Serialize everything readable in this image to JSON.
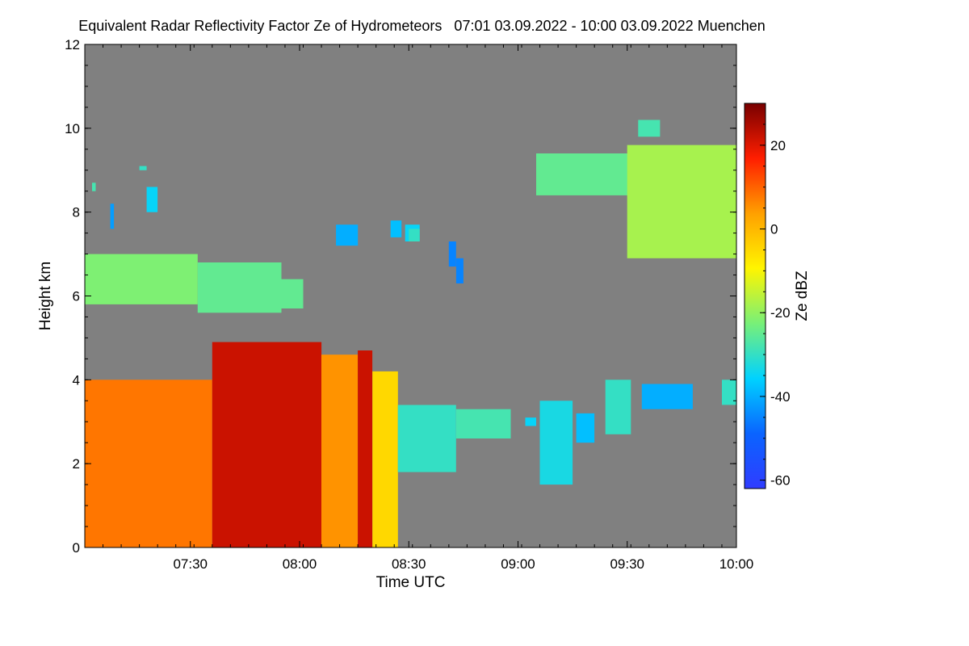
{
  "chart_data": {
    "type": "heatmap",
    "title": "Equivalent Radar Reflectivity Factor Ze of Hydrometeors   07:01 03.09.2022 - 10:00 03.09.2022 Muenchen",
    "xlabel": "Time UTC",
    "ylabel": "Height km",
    "colorbar_label": "Ze dBZ",
    "xlim": [
      "07:01",
      "10:00"
    ],
    "ylim": [
      0,
      12
    ],
    "x_ticks": [
      "07:30",
      "08:00",
      "08:30",
      "09:00",
      "09:30",
      "10:00"
    ],
    "y_ticks": [
      "0",
      "2",
      "4",
      "6",
      "8",
      "10",
      "12"
    ],
    "colorbar_range": [
      -62,
      30
    ],
    "colorbar_ticks": [
      "20",
      "0",
      "-20",
      "-40",
      "-60"
    ],
    "background_color": "#808080",
    "colormap": [
      "#303cff",
      "#0a64ff",
      "#00d2ff",
      "#78f078",
      "#fff500",
      "#ffa000",
      "#ff1e00",
      "#780000"
    ],
    "series": [
      {
        "kind": "cloud layer",
        "time_start": "07:01",
        "time_end": "07:32",
        "height_bottom": 5.8,
        "height_top": 7.0,
        "ze_dbz": -22
      },
      {
        "kind": "cloud layer",
        "time_start": "07:32",
        "time_end": "07:55",
        "height_bottom": 5.6,
        "height_top": 6.8,
        "ze_dbz": -25
      },
      {
        "kind": "cloud layer",
        "time_start": "07:51",
        "time_end": "08:01",
        "height_bottom": 5.7,
        "height_top": 6.4,
        "ze_dbz": -25
      },
      {
        "kind": "precipitation",
        "time_start": "07:01",
        "time_end": "07:36",
        "height_bottom": 0,
        "height_top": 4.0,
        "ze_dbz": 8
      },
      {
        "kind": "precipitation",
        "time_start": "07:36",
        "time_end": "08:06",
        "height_bottom": 0,
        "height_top": 4.9,
        "ze_dbz": 22
      },
      {
        "kind": "precipitation",
        "time_start": "08:06",
        "time_end": "08:16",
        "height_bottom": 0,
        "height_top": 4.6,
        "ze_dbz": 5
      },
      {
        "kind": "precipitation",
        "time_start": "08:16",
        "time_end": "08:20",
        "height_bottom": 0,
        "height_top": 4.7,
        "ze_dbz": 22
      },
      {
        "kind": "precipitation",
        "time_start": "08:20",
        "time_end": "08:27",
        "height_bottom": 0,
        "height_top": 4.2,
        "ze_dbz": -5
      },
      {
        "kind": "cloud layer",
        "time_start": "08:27",
        "time_end": "08:43",
        "height_bottom": 1.8,
        "height_top": 3.4,
        "ze_dbz": -30
      },
      {
        "kind": "cloud layer",
        "time_start": "08:43",
        "time_end": "08:58",
        "height_bottom": 2.6,
        "height_top": 3.3,
        "ze_dbz": -28
      },
      {
        "kind": "cloud layer",
        "time_start": "09:02",
        "time_end": "09:05",
        "height_bottom": 2.9,
        "height_top": 3.1,
        "ze_dbz": -35
      },
      {
        "kind": "cloud layer",
        "time_start": "09:06",
        "time_end": "09:15",
        "height_bottom": 1.5,
        "height_top": 3.5,
        "ze_dbz": -33
      },
      {
        "kind": "cloud layer",
        "time_start": "09:16",
        "time_end": "09:21",
        "height_bottom": 2.5,
        "height_top": 3.2,
        "ze_dbz": -38
      },
      {
        "kind": "cloud layer",
        "time_start": "09:24",
        "time_end": "09:31",
        "height_bottom": 2.7,
        "height_top": 4.0,
        "ze_dbz": -30
      },
      {
        "kind": "cloud layer",
        "time_start": "09:34",
        "time_end": "09:48",
        "height_bottom": 3.3,
        "height_top": 3.9,
        "ze_dbz": -40
      },
      {
        "kind": "cloud layer",
        "time_start": "09:56",
        "time_end": "10:00",
        "height_bottom": 3.4,
        "height_top": 4.0,
        "ze_dbz": -30
      },
      {
        "kind": "cloud layer",
        "time_start": "09:05",
        "time_end": "09:35",
        "height_bottom": 8.4,
        "height_top": 9.4,
        "ze_dbz": -25
      },
      {
        "kind": "cloud layer",
        "time_start": "09:30",
        "time_end": "10:00",
        "height_bottom": 6.9,
        "height_top": 9.6,
        "ze_dbz": -18
      },
      {
        "kind": "cloud layer",
        "time_start": "09:33",
        "time_end": "09:39",
        "height_bottom": 9.8,
        "height_top": 10.2,
        "ze_dbz": -28
      },
      {
        "kind": "cloud fragment",
        "time_start": "07:03",
        "time_end": "07:04",
        "height_bottom": 8.5,
        "height_top": 8.7,
        "ze_dbz": -28
      },
      {
        "kind": "cloud fragment",
        "time_start": "07:08",
        "time_end": "07:09",
        "height_bottom": 7.6,
        "height_top": 8.2,
        "ze_dbz": -42
      },
      {
        "kind": "cloud fragment",
        "time_start": "07:18",
        "time_end": "07:21",
        "height_bottom": 8.0,
        "height_top": 8.6,
        "ze_dbz": -35
      },
      {
        "kind": "cloud fragment",
        "time_start": "07:16",
        "time_end": "07:18",
        "height_bottom": 9.0,
        "height_top": 9.1,
        "ze_dbz": -30
      },
      {
        "kind": "cloud fragment",
        "time_start": "08:10",
        "time_end": "08:16",
        "height_bottom": 7.2,
        "height_top": 7.7,
        "ze_dbz": -40
      },
      {
        "kind": "cloud fragment",
        "time_start": "08:29",
        "time_end": "08:33",
        "height_bottom": 7.3,
        "height_top": 7.7,
        "ze_dbz": -35
      },
      {
        "kind": "cloud fragment",
        "time_start": "08:41",
        "time_end": "08:43",
        "height_bottom": 6.7,
        "height_top": 7.3,
        "ze_dbz": -45
      },
      {
        "kind": "cloud fragment",
        "time_start": "08:43",
        "time_end": "08:45",
        "height_bottom": 6.3,
        "height_top": 6.9,
        "ze_dbz": -45
      },
      {
        "kind": "cloud fragment",
        "time_start": "08:25",
        "time_end": "08:28",
        "height_bottom": 7.4,
        "height_top": 7.8,
        "ze_dbz": -38
      },
      {
        "kind": "cloud fragment",
        "time_start": "08:30",
        "time_end": "08:33",
        "height_bottom": 7.3,
        "height_top": 7.6,
        "ze_dbz": -30
      }
    ]
  }
}
